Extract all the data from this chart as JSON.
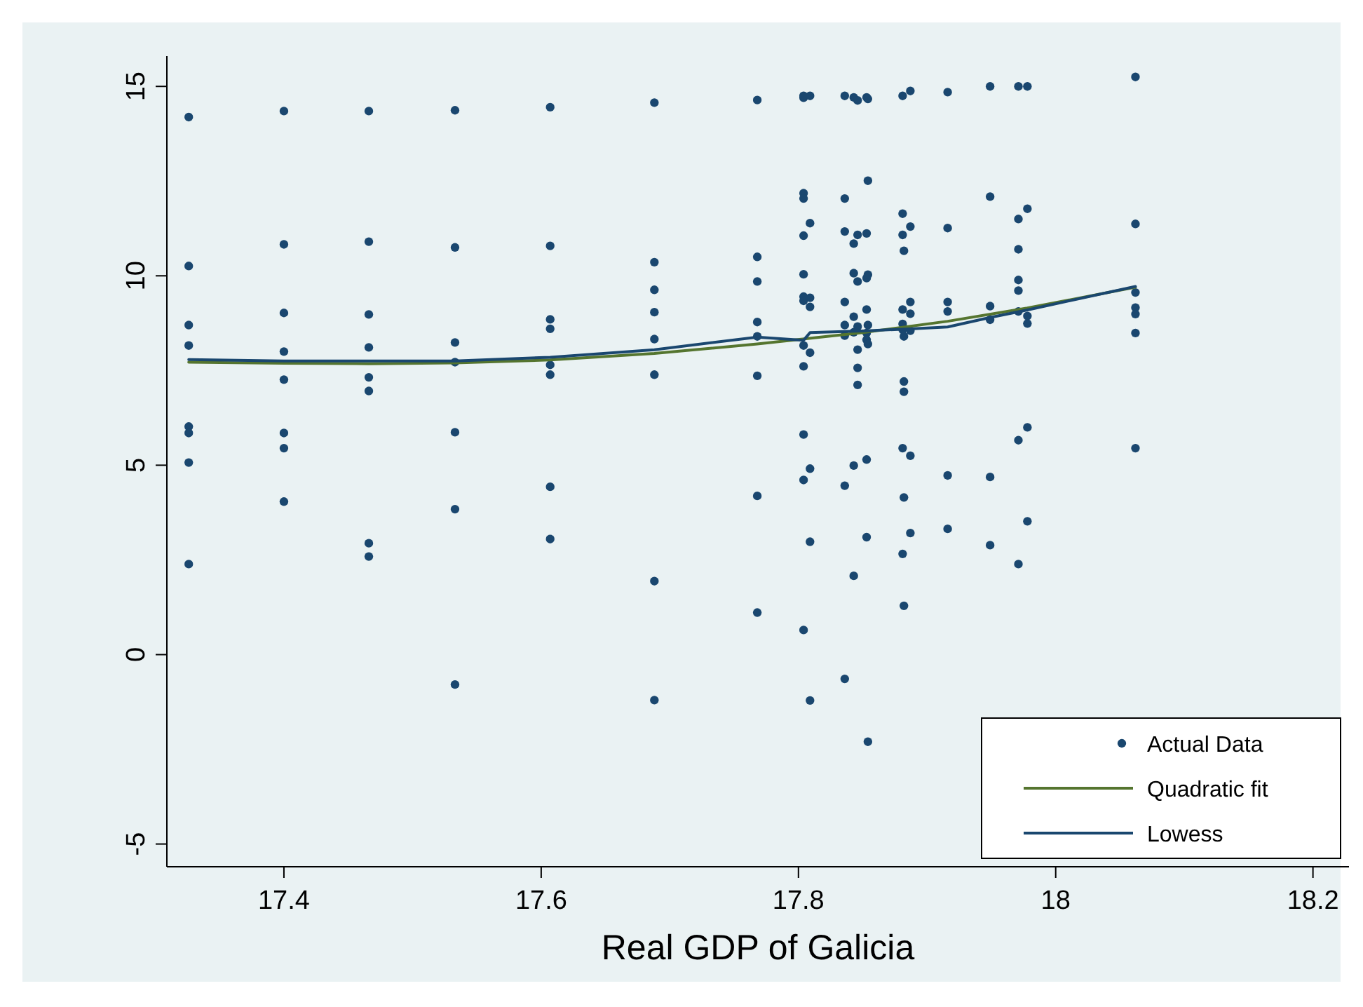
{
  "chart_data": {
    "type": "scatter",
    "xlabel": "Real GDP of Galicia",
    "xlim": [
      17.309,
      18.228
    ],
    "ylim": [
      -5.6,
      15.8
    ],
    "xticks": [
      17.4,
      17.6,
      17.8,
      {
        "value": 18,
        "label": "18"
      },
      18.2
    ],
    "yticks": [
      -5,
      0,
      5,
      10,
      15
    ],
    "grid": false,
    "legend": "bottom right",
    "series": [
      {
        "name": "Actual Data",
        "marker": "circle",
        "color": "#1a476f",
        "x": [
          17.326,
          17.326,
          17.326,
          17.326,
          17.326,
          17.326,
          17.326,
          17.326,
          17.4,
          17.4,
          17.4,
          17.4,
          17.4,
          17.4,
          17.4,
          17.4,
          17.466,
          17.466,
          17.466,
          17.466,
          17.466,
          17.466,
          17.466,
          17.466,
          17.533,
          17.533,
          17.533,
          17.533,
          17.533,
          17.533,
          17.533,
          17.607,
          17.607,
          17.607,
          17.607,
          17.607,
          17.607,
          17.607,
          17.607,
          17.688,
          17.688,
          17.688,
          17.688,
          17.688,
          17.688,
          17.688,
          17.688,
          17.768,
          17.768,
          17.768,
          17.768,
          17.768,
          17.768,
          17.768,
          17.768,
          17.804,
          17.804,
          17.804,
          17.804,
          17.804,
          17.804,
          17.804,
          17.804,
          17.804,
          17.804,
          17.804,
          17.804,
          17.804,
          17.809,
          17.809,
          17.809,
          17.809,
          17.809,
          17.809,
          17.809,
          17.809,
          17.836,
          17.836,
          17.836,
          17.836,
          17.836,
          17.836,
          17.836,
          17.836,
          17.843,
          17.843,
          17.843,
          17.843,
          17.843,
          17.843,
          17.843,
          17.846,
          17.846,
          17.846,
          17.846,
          17.846,
          17.846,
          17.846,
          17.853,
          17.853,
          17.853,
          17.853,
          17.853,
          17.853,
          17.853,
          17.853,
          17.854,
          17.854,
          17.854,
          17.854,
          17.854,
          17.854,
          17.881,
          17.881,
          17.881,
          17.881,
          17.881,
          17.881,
          17.881,
          17.881,
          17.882,
          17.882,
          17.882,
          17.882,
          17.882,
          17.882,
          17.887,
          17.887,
          17.887,
          17.887,
          17.887,
          17.887,
          17.887,
          17.916,
          17.916,
          17.916,
          17.916,
          17.916,
          17.916,
          17.949,
          17.949,
          17.949,
          17.949,
          17.949,
          17.949,
          17.971,
          17.971,
          17.971,
          17.971,
          17.971,
          17.971,
          17.971,
          17.971,
          17.978,
          17.978,
          17.978,
          17.978,
          17.978,
          17.978,
          18.062,
          18.062,
          18.062,
          18.062,
          18.062,
          18.062,
          18.062
        ],
        "values": [
          14.19,
          10.26,
          8.7,
          8.16,
          6.02,
          5.85,
          5.07,
          2.39,
          14.35,
          10.83,
          9.02,
          8.0,
          7.26,
          5.85,
          5.45,
          4.04,
          14.35,
          10.9,
          8.98,
          8.11,
          7.32,
          6.96,
          2.94,
          2.59,
          14.37,
          10.75,
          8.24,
          7.72,
          5.87,
          3.84,
          -0.79,
          14.45,
          10.79,
          8.85,
          8.6,
          7.65,
          7.39,
          4.43,
          3.05,
          14.57,
          10.36,
          9.63,
          9.04,
          8.33,
          7.39,
          1.94,
          -1.2,
          14.64,
          10.5,
          9.85,
          8.78,
          8.4,
          7.36,
          4.19,
          1.11,
          14.7,
          14.75,
          12.18,
          12.04,
          11.06,
          10.04,
          9.45,
          9.34,
          8.16,
          7.61,
          5.81,
          4.61,
          0.65,
          14.75,
          11.39,
          9.42,
          9.18,
          7.97,
          4.91,
          2.98,
          -1.21,
          14.75,
          12.04,
          11.17,
          9.31,
          8.7,
          8.42,
          4.46,
          -0.64,
          14.71,
          10.85,
          10.07,
          8.92,
          8.51,
          4.99,
          2.08,
          14.63,
          11.08,
          9.85,
          8.66,
          8.05,
          7.57,
          7.12,
          14.71,
          11.12,
          9.94,
          9.11,
          8.49,
          8.31,
          5.15,
          3.1,
          14.67,
          12.51,
          10.03,
          8.7,
          8.2,
          -2.3,
          14.75,
          11.64,
          11.08,
          9.11,
          8.73,
          8.58,
          5.45,
          2.66,
          10.66,
          8.4,
          7.21,
          6.94,
          4.15,
          1.29,
          14.88,
          11.3,
          9.31,
          9.0,
          8.55,
          5.25,
          3.21,
          14.85,
          11.26,
          9.31,
          9.06,
          4.73,
          3.32,
          15.0,
          12.09,
          9.2,
          8.84,
          4.69,
          2.89,
          15.0,
          11.5,
          10.7,
          9.89,
          9.61,
          9.06,
          5.66,
          2.39,
          15.0,
          11.77,
          8.94,
          8.74,
          6.0,
          3.52,
          15.25,
          11.37,
          9.56,
          9.16,
          8.99,
          8.49,
          5.45
        ]
      },
      {
        "name": "Quadratic fit",
        "type": "line",
        "color": "#55752f",
        "x": [
          17.326,
          17.4,
          17.466,
          17.533,
          17.607,
          17.688,
          17.768,
          17.85,
          17.916,
          17.978,
          18.062
        ],
        "values": [
          7.72,
          7.69,
          7.68,
          7.7,
          7.78,
          7.95,
          8.2,
          8.5,
          8.8,
          9.15,
          9.7
        ]
      },
      {
        "name": "Lowess",
        "type": "line",
        "color": "#1a476f",
        "x": [
          17.326,
          17.4,
          17.466,
          17.533,
          17.607,
          17.688,
          17.768,
          17.804,
          17.809,
          17.853,
          17.887,
          17.916,
          17.949,
          17.978,
          18.062
        ],
        "values": [
          7.79,
          7.75,
          7.75,
          7.75,
          7.85,
          8.05,
          8.38,
          8.3,
          8.5,
          8.55,
          8.6,
          8.65,
          8.9,
          9.1,
          9.72
        ]
      }
    ]
  }
}
